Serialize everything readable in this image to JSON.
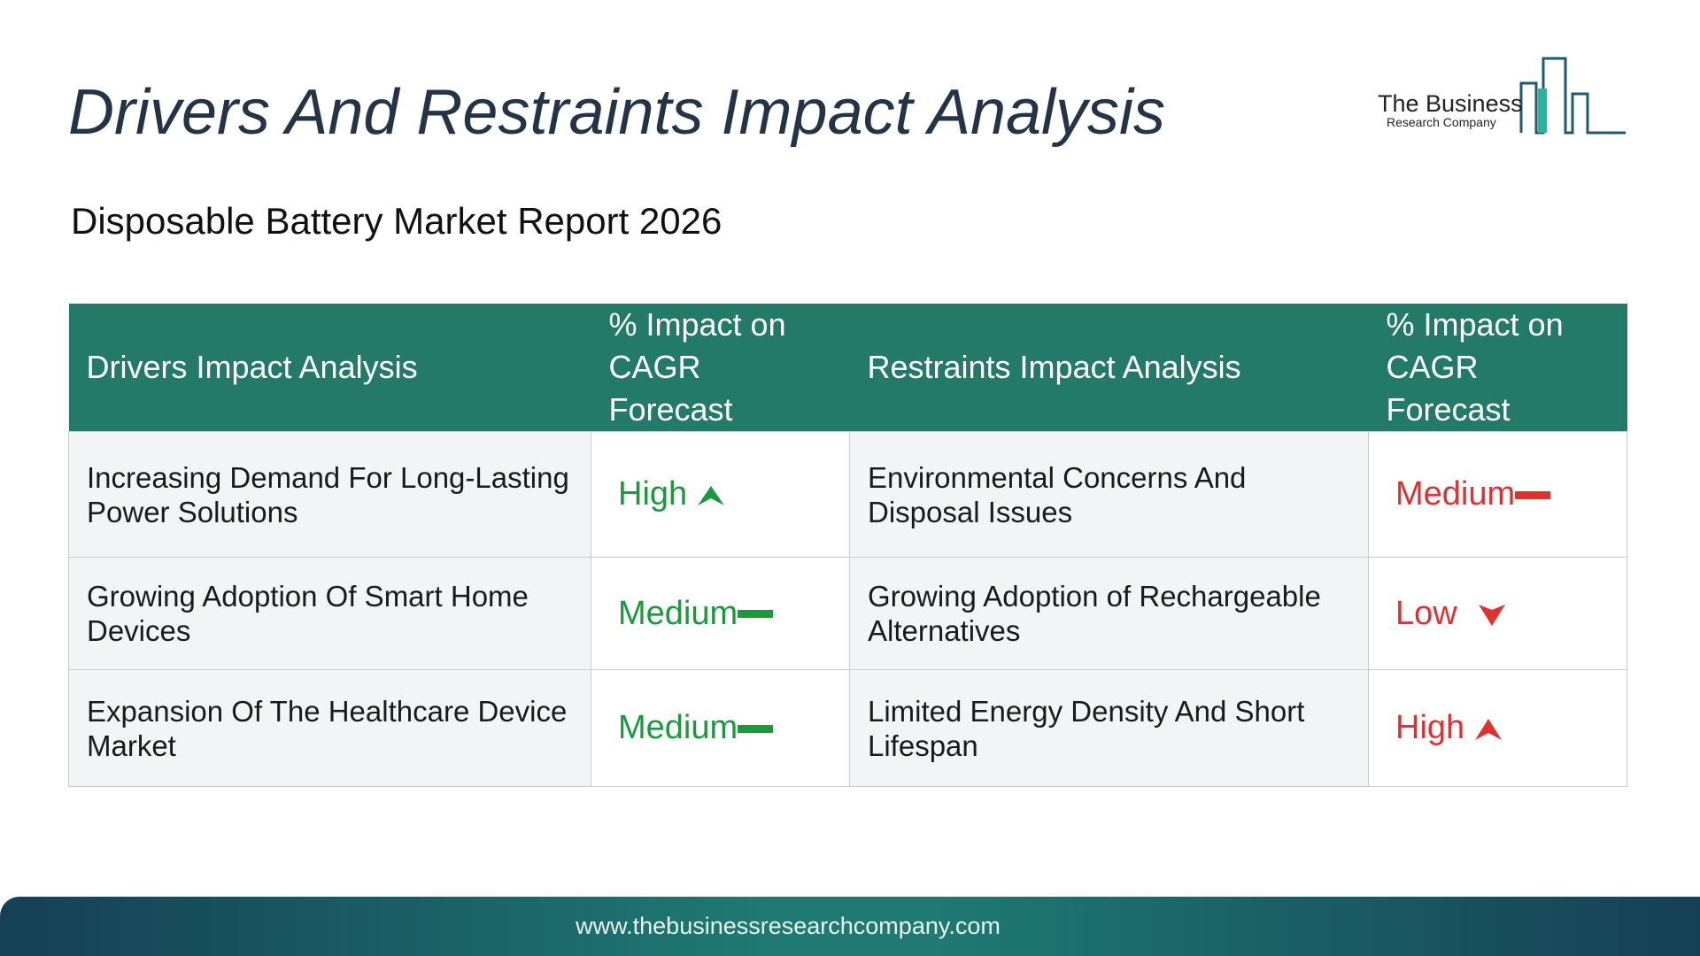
{
  "header": {
    "title": "Drivers And Restraints Impact Analysis",
    "subtitle": "Disposable Battery Market Report 2026"
  },
  "logo": {
    "name": "The Business",
    "tagline": "Research Company"
  },
  "table": {
    "columns": [
      "Drivers Impact Analysis",
      "% Impact on CAGR Forecast",
      "Restraints Impact Analysis",
      "% Impact on CAGR Forecast"
    ],
    "rows": [
      [
        "Increasing Demand For Long-Lasting Power Solutions",
        "High",
        "Environmental Concerns And Disposal Issues",
        "Medium"
      ],
      [
        "Growing Adoption Of Smart Home Devices",
        "Medium",
        "Growing Adoption of Rechargeable Alternatives",
        "Low"
      ],
      [
        "Expansion Of The Healthcare Device Market",
        "Medium",
        "Limited Energy Density And Short Lifespan",
        "High"
      ]
    ]
  },
  "footer": {
    "url": "www.thebusinessresearchcompany.com"
  }
}
